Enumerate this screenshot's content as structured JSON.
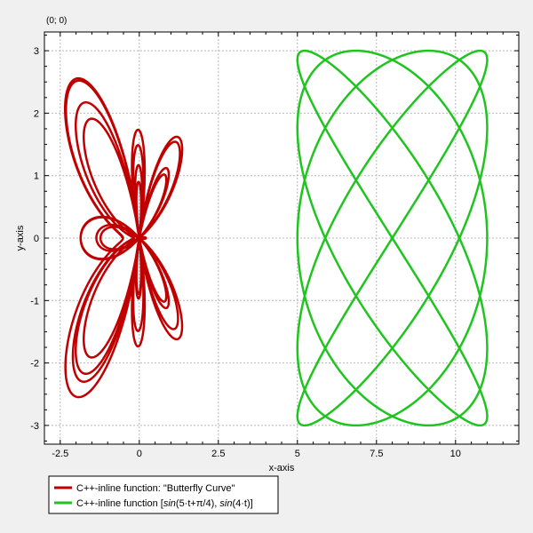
{
  "coordinate_readout": "(0; 0)",
  "chart_data": {
    "type": "line",
    "xlabel": "x-axis",
    "ylabel": "y-axis",
    "xlim": [
      -3.0,
      12.0
    ],
    "ylim": [
      -3.3,
      3.3
    ],
    "xticks": [
      -2.5,
      0,
      2.5,
      5,
      7.5,
      10
    ],
    "xtick_labels": [
      "-2.5",
      "0",
      "2.5",
      "5",
      "7.5",
      "10"
    ],
    "yticks": [
      -3,
      -2,
      -1,
      0,
      1,
      2,
      3
    ],
    "ytick_labels": [
      "-3",
      "-2",
      "-1",
      "0",
      "1",
      "2",
      "3"
    ],
    "grid": true,
    "legend_position": "bottom-left, below plot",
    "series": [
      {
        "name": "C++-inline function: \"Butterfly Curve\"",
        "color": "#c00000",
        "function": "butterfly curve",
        "t_range": [
          0,
          25.1327
        ]
      },
      {
        "name": "C++-inline function [sin(5·t+π/4), sin(4·t)]",
        "color": "#1fc41f",
        "function": "x = 8 + 3·sin(5t+π/4), y = 3·sin(4t)",
        "t_range": [
          0,
          6.2832
        ]
      }
    ]
  },
  "legend": {
    "item1_text": "C++-inline function: \"Butterfly Curve\"",
    "item2_prefix": "C++-inline function [",
    "item2_math1": "sin",
    "item2_arg1": "(5·t+π/4),",
    "item2_math2": "sin",
    "item2_arg2": "(4·t)",
    "item2_suffix": "]"
  }
}
